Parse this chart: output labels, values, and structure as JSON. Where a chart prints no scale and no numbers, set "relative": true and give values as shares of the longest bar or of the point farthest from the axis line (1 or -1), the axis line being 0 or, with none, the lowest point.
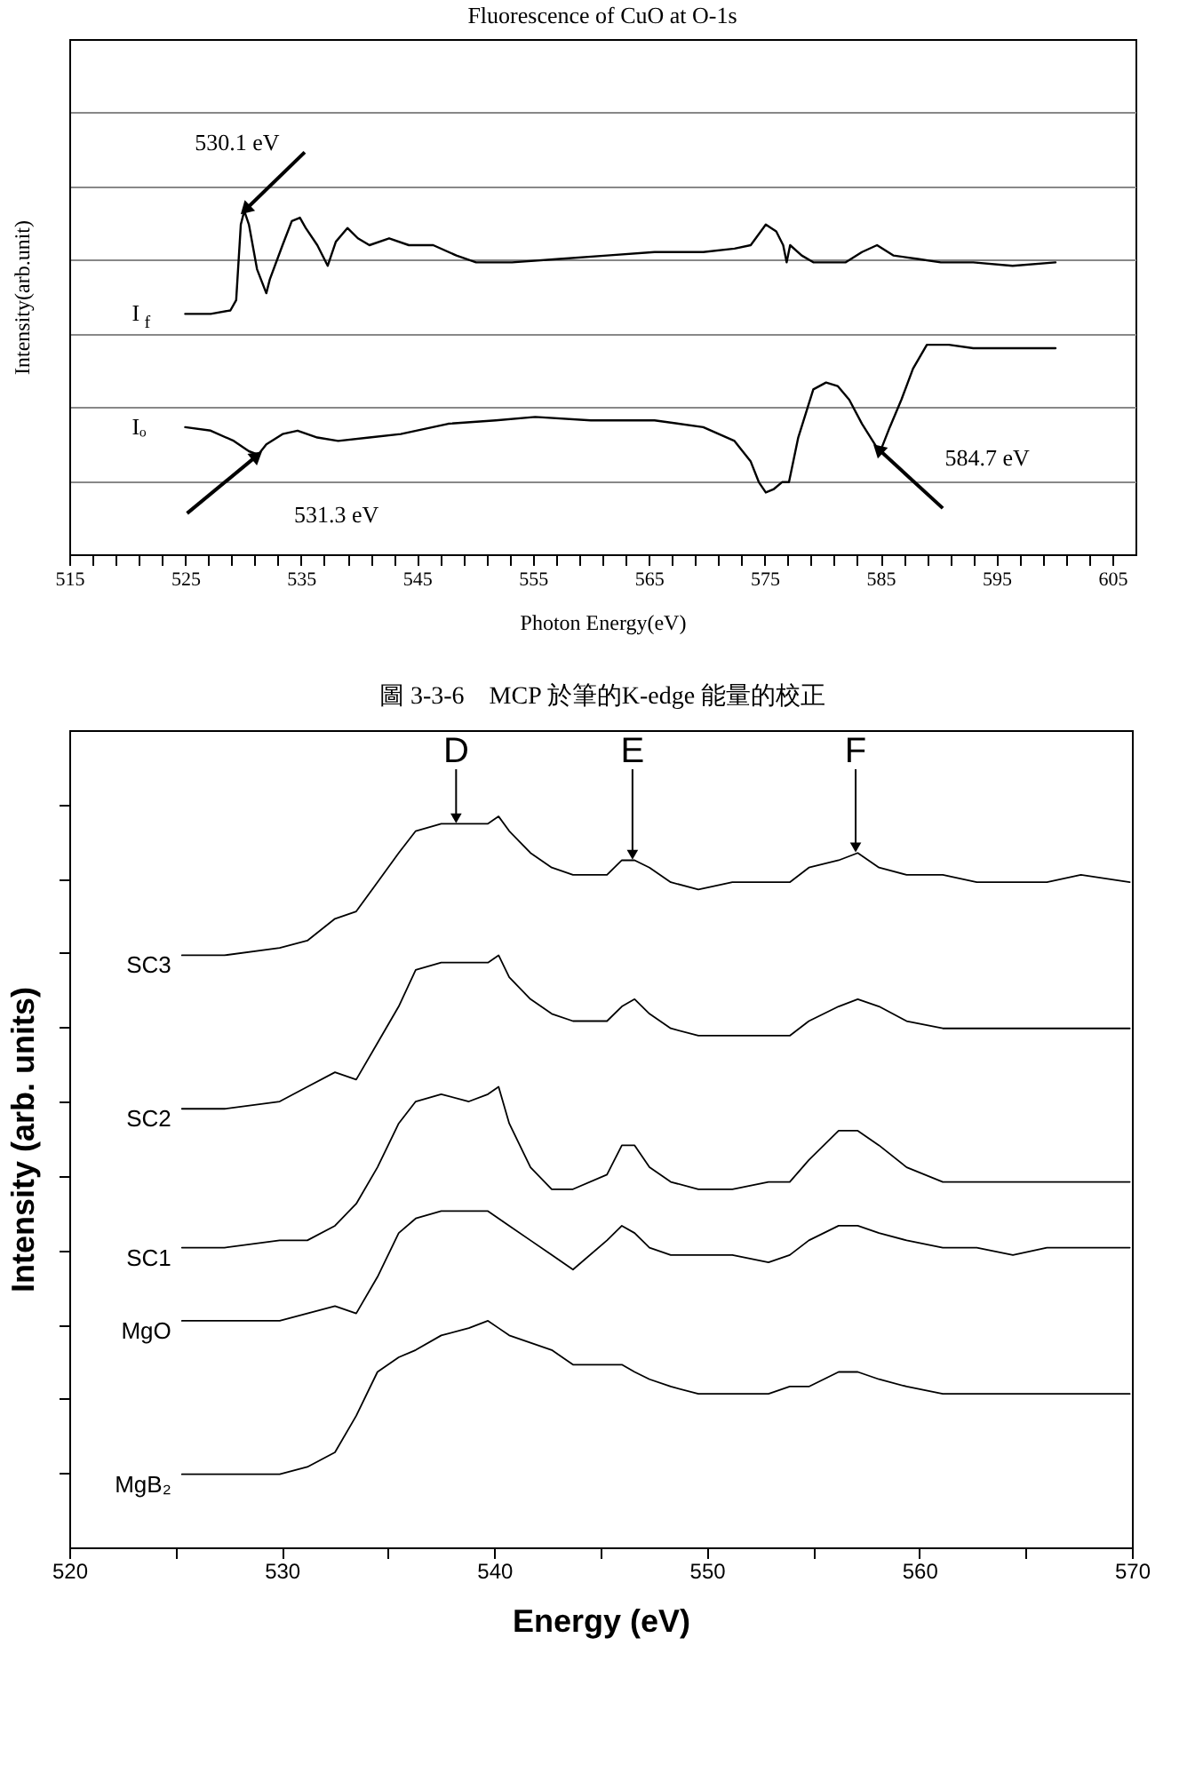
{
  "chart_data": [
    {
      "type": "line",
      "title": "Fluorescence of CuO at O-1s",
      "xlabel": "Photon Energy(eV)",
      "ylabel": "Intensity(arb.unit)",
      "relative": true,
      "grid": "y",
      "tick_labels": "x",
      "xlim": [
        515,
        607
      ],
      "xticks": [
        515,
        {
          "value": 517,
          "label": null
        },
        {
          "value": 519,
          "label": null
        },
        {
          "value": 521,
          "label": null
        },
        {
          "value": 523,
          "label": null
        },
        525,
        {
          "value": 527,
          "label": null
        },
        {
          "value": 529,
          "label": null
        },
        {
          "value": 531,
          "label": null
        },
        {
          "value": 533,
          "label": null
        },
        535,
        {
          "value": 537,
          "label": null
        },
        {
          "value": 539,
          "label": null
        },
        {
          "value": 541,
          "label": null
        },
        {
          "value": 543,
          "label": null
        },
        545,
        {
          "value": 547,
          "label": null
        },
        {
          "value": 549,
          "label": null
        },
        {
          "value": 551,
          "label": null
        },
        {
          "value": 553,
          "label": null
        },
        555,
        {
          "value": 557,
          "label": null
        },
        {
          "value": 559,
          "label": null
        },
        {
          "value": 561,
          "label": null
        },
        {
          "value": 563,
          "label": null
        },
        565,
        {
          "value": 567,
          "label": null
        },
        {
          "value": 569,
          "label": null
        },
        {
          "value": 571,
          "label": null
        },
        {
          "value": 573,
          "label": null
        },
        575,
        {
          "value": 577,
          "label": null
        },
        {
          "value": 579,
          "label": null
        },
        {
          "value": 581,
          "label": null
        },
        {
          "value": 583,
          "label": null
        },
        585,
        {
          "value": 587,
          "label": null
        },
        {
          "value": 589,
          "label": null
        },
        {
          "value": 591,
          "label": null
        },
        {
          "value": 593,
          "label": null
        },
        595,
        {
          "value": 597,
          "label": null
        },
        {
          "value": 599,
          "label": null
        },
        {
          "value": 601,
          "label": null
        },
        {
          "value": 603,
          "label": null
        },
        605
      ],
      "series": [
        {
          "name": "I$_{f}$",
          "color": "#000000",
          "x": [
            525.0,
            527.2,
            528.9,
            529.4,
            529.8,
            530.1,
            530.5,
            531.2,
            532.0,
            532.3,
            533.4,
            534.2,
            534.9,
            535.4,
            536.4,
            537.3,
            538.0,
            539.0,
            539.9,
            540.9,
            542.6,
            544.3,
            546.4,
            548.4,
            550.1,
            553.2,
            557.3,
            561.4,
            565.5,
            569.7,
            572.4,
            573.8,
            575.1,
            576.0,
            576.6,
            576.9,
            577.2,
            578.2,
            579.2,
            582.0,
            583.4,
            584.7,
            586.1,
            588.2,
            590.2,
            593.0,
            596.4,
            600.1
          ],
          "values": [
            0.7,
            0.7,
            0.71,
            0.74,
            0.96,
            1,
            0.96,
            0.83,
            0.76,
            0.8,
            0.9,
            0.97,
            0.98,
            0.95,
            0.9,
            0.84,
            0.91,
            0.95,
            0.92,
            0.9,
            0.92,
            0.9,
            0.9,
            0.87,
            0.85,
            0.85,
            0.86,
            0.87,
            0.88,
            0.88,
            0.89,
            0.9,
            0.96,
            0.94,
            0.9,
            0.85,
            0.9,
            0.87,
            0.85,
            0.85,
            0.88,
            0.9,
            0.87,
            0.86,
            0.85,
            0.85,
            0.84,
            0.85
          ]
        },
        {
          "name": "Iₒ",
          "color": "#000000",
          "x": [
            525.0,
            527.2,
            529.2,
            530.5,
            531.3,
            532.0,
            533.4,
            534.7,
            536.4,
            538.2,
            540.9,
            543.6,
            547.7,
            551.8,
            555.2,
            560.0,
            565.5,
            569.7,
            572.4,
            573.8,
            574.5,
            575.1,
            575.8,
            576.5,
            577.1,
            577.9,
            579.2,
            580.3,
            581.3,
            582.3,
            583.4,
            584.7,
            585.1,
            585.8,
            586.8,
            587.8,
            589.0,
            590.9,
            593.0,
            596.4,
            600.1
          ],
          "values": [
            0.37,
            0.36,
            0.33,
            0.3,
            0.29,
            0.32,
            0.35,
            0.36,
            0.34,
            0.33,
            0.34,
            0.35,
            0.38,
            0.39,
            0.4,
            0.39,
            0.39,
            0.37,
            0.33,
            0.27,
            0.21,
            0.18,
            0.19,
            0.21,
            0.21,
            0.34,
            0.48,
            0.5,
            0.49,
            0.45,
            0.38,
            0.31,
            0.31,
            0.37,
            0.45,
            0.54,
            0.61,
            0.61,
            0.6,
            0.6,
            0.6
          ]
        }
      ],
      "annotations": [
        {
          "text": "530.1 eV",
          "x": 530.1,
          "y": 1
        },
        {
          "text": "531.3 eV",
          "x": 531.3,
          "y": 0.29
        },
        {
          "text": "584.7 eV",
          "x": 584.7,
          "y": 0.31
        },
        "圖 3-3-6　MCP 於筆的K-edge 能量的校正"
      ]
    },
    {
      "type": "line",
      "xlabel": "Energy (eV)",
      "ylabel": "Intensity (arb. units)",
      "relative": true,
      "tick_labels": "x",
      "legend": "left",
      "xlim": [
        520,
        570
      ],
      "xticks": [
        520,
        {
          "value": 525,
          "label": null
        },
        530,
        {
          "value": 535,
          "label": null
        },
        540,
        {
          "value": 545,
          "label": null
        },
        550,
        {
          "value": 555,
          "label": null
        },
        560,
        {
          "value": 565,
          "label": null
        },
        570
      ],
      "x": [
        525.3,
        527.3,
        529.9,
        531.2,
        532.5,
        533.5,
        534.5,
        535.5,
        536.3,
        537.5,
        538.8,
        539.7,
        540.2,
        540.7,
        541.7,
        542.7,
        543.7,
        545.3,
        546.0,
        546.6,
        547.3,
        548.3,
        549.6,
        551.2,
        552.9,
        553.9,
        554.8,
        556.2,
        557.1,
        558.1,
        559.4,
        561.1,
        562.7,
        564.4,
        566.0,
        567.6,
        569.9
      ],
      "series": [
        {
          "name": "SC3",
          "color": "#000000",
          "values": [
            0.81,
            0.81,
            0.82,
            0.83,
            0.86,
            0.87,
            0.91,
            0.95,
            0.98,
            0.99,
            0.99,
            0.99,
            1.0,
            0.98,
            0.95,
            0.93,
            0.92,
            0.92,
            0.94,
            0.94,
            0.93,
            0.91,
            0.9,
            0.91,
            0.91,
            0.91,
            0.93,
            0.94,
            0.95,
            0.93,
            0.92,
            0.92,
            0.91,
            0.91,
            0.91,
            0.92,
            0.91
          ]
        },
        {
          "name": "SC2",
          "color": "#000000",
          "values": [
            0.6,
            0.6,
            0.61,
            0.63,
            0.65,
            0.64,
            0.69,
            0.74,
            0.79,
            0.8,
            0.8,
            0.8,
            0.81,
            0.78,
            0.75,
            0.73,
            0.72,
            0.72,
            0.74,
            0.75,
            0.73,
            0.71,
            0.7,
            0.7,
            0.7,
            0.7,
            0.72,
            0.74,
            0.75,
            0.74,
            0.72,
            0.71,
            0.71,
            0.71,
            0.71,
            0.71,
            0.71
          ]
        },
        {
          "name": "SC1",
          "color": "#000000",
          "values": [
            0.41,
            0.41,
            0.42,
            0.42,
            0.44,
            0.47,
            0.52,
            0.58,
            0.61,
            0.62,
            0.61,
            0.62,
            0.63,
            0.58,
            0.52,
            0.49,
            0.49,
            0.51,
            0.55,
            0.55,
            0.52,
            0.5,
            0.49,
            0.49,
            0.5,
            0.5,
            0.53,
            0.57,
            0.57,
            0.55,
            0.52,
            0.5,
            0.5,
            0.5,
            0.5,
            0.5,
            0.5
          ]
        },
        {
          "name": "MgO",
          "color": "#000000",
          "values": [
            0.31,
            0.31,
            0.31,
            0.32,
            0.33,
            0.32,
            0.37,
            0.43,
            0.45,
            0.46,
            0.46,
            0.46,
            0.45,
            0.44,
            0.42,
            0.4,
            0.38,
            0.42,
            0.44,
            0.43,
            0.41,
            0.4,
            0.4,
            0.4,
            0.39,
            0.4,
            0.42,
            0.44,
            0.44,
            0.43,
            0.42,
            0.41,
            0.41,
            0.4,
            0.41,
            0.41,
            0.41
          ]
        },
        {
          "name": "MgB₂",
          "color": "#000000",
          "values": [
            0.1,
            0.1,
            0.1,
            0.11,
            0.13,
            0.18,
            0.24,
            0.26,
            0.27,
            0.29,
            0.3,
            0.31,
            0.3,
            0.29,
            0.28,
            0.27,
            0.25,
            0.25,
            0.25,
            0.24,
            0.23,
            0.22,
            0.21,
            0.21,
            0.21,
            0.22,
            0.22,
            0.24,
            0.24,
            0.23,
            0.22,
            0.21,
            0.21,
            0.21,
            0.21,
            0.21,
            0.21
          ]
        }
      ],
      "annotations": [
        {
          "text": "D",
          "x": 538.2,
          "y": 0.99
        },
        {
          "text": "E",
          "x": 546.5,
          "y": 0.94
        },
        {
          "text": "F",
          "x": 557.0,
          "y": 0.95
        }
      ]
    }
  ]
}
